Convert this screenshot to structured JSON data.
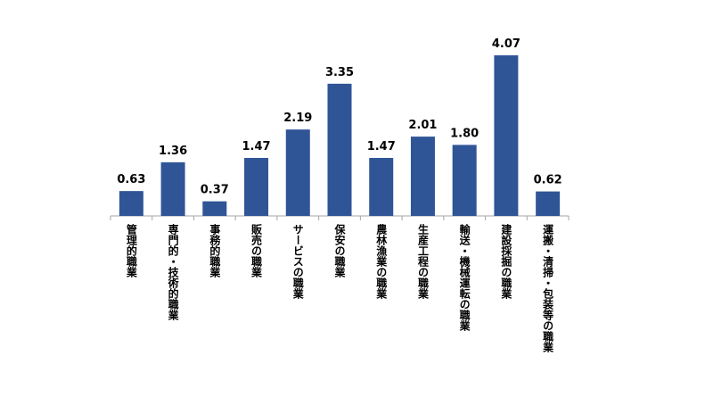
{
  "chart_data": {
    "type": "bar",
    "categories": [
      "管理的職業",
      "専門的・技術的職業",
      "事務的職業",
      "販売の職業",
      "サービスの職業",
      "保安の職業",
      "農林漁業の職業",
      "生産工程の職業",
      "輸送・機械運転の職業",
      "建設採掘の職業",
      "運搬・清掃・包装等の職業"
    ],
    "values": [
      0.63,
      1.36,
      0.37,
      1.47,
      2.19,
      3.35,
      1.47,
      2.01,
      1.8,
      4.07,
      0.62
    ],
    "value_labels": [
      "0.63",
      "1.36",
      "0.37",
      "1.47",
      "2.19",
      "3.35",
      "1.47",
      "2.01",
      "1.80",
      "4.07",
      "0.62"
    ],
    "color": "#2f5597"
  }
}
